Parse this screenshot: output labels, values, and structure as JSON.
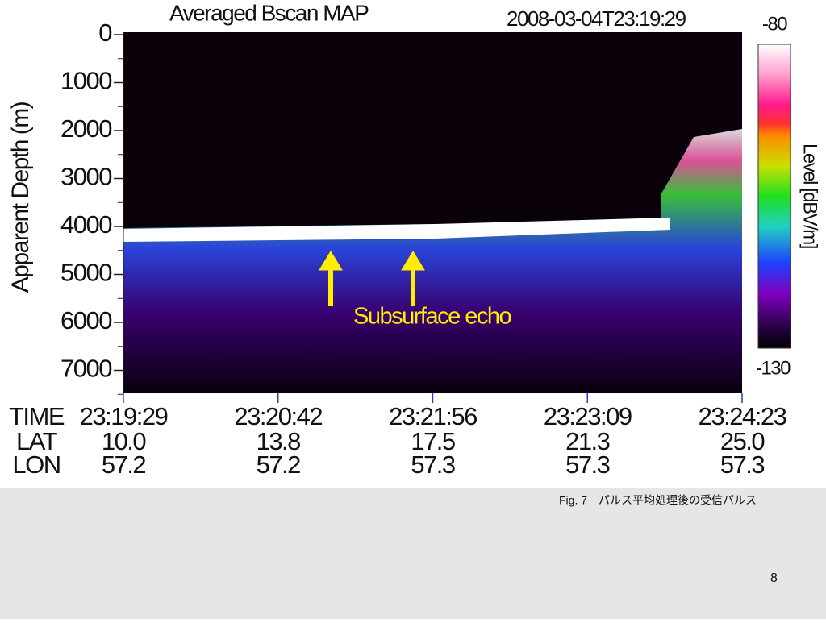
{
  "figure": {
    "title": "Averaged Bscan MAP",
    "timestamp": "2008-03-04T23:19:29",
    "y_axis": {
      "label": "Apparent Depth (m)",
      "ticks": [
        0,
        1000,
        2000,
        3000,
        4000,
        5000,
        6000,
        7000
      ]
    },
    "colorbar": {
      "label": "Level [dBV/m]",
      "max": -80,
      "min": -130
    },
    "annotation": "Subsurface echo",
    "x_axis": {
      "row_labels": [
        "TIME",
        "LAT",
        "LON"
      ],
      "columns": [
        {
          "time": "23:19:29",
          "lat": "10.0",
          "lon": "57.2"
        },
        {
          "time": "23:20:42",
          "lat": "13.8",
          "lon": "57.2"
        },
        {
          "time": "23:21:56",
          "lat": "17.5",
          "lon": "57.3"
        },
        {
          "time": "23:23:09",
          "lat": "21.3",
          "lon": "57.3"
        },
        {
          "time": "23:24:23",
          "lat": "25.0",
          "lon": "57.3"
        }
      ]
    }
  },
  "caption": "Fig. 7　パルス平均処理後の受信パルス",
  "page_number": 8
}
